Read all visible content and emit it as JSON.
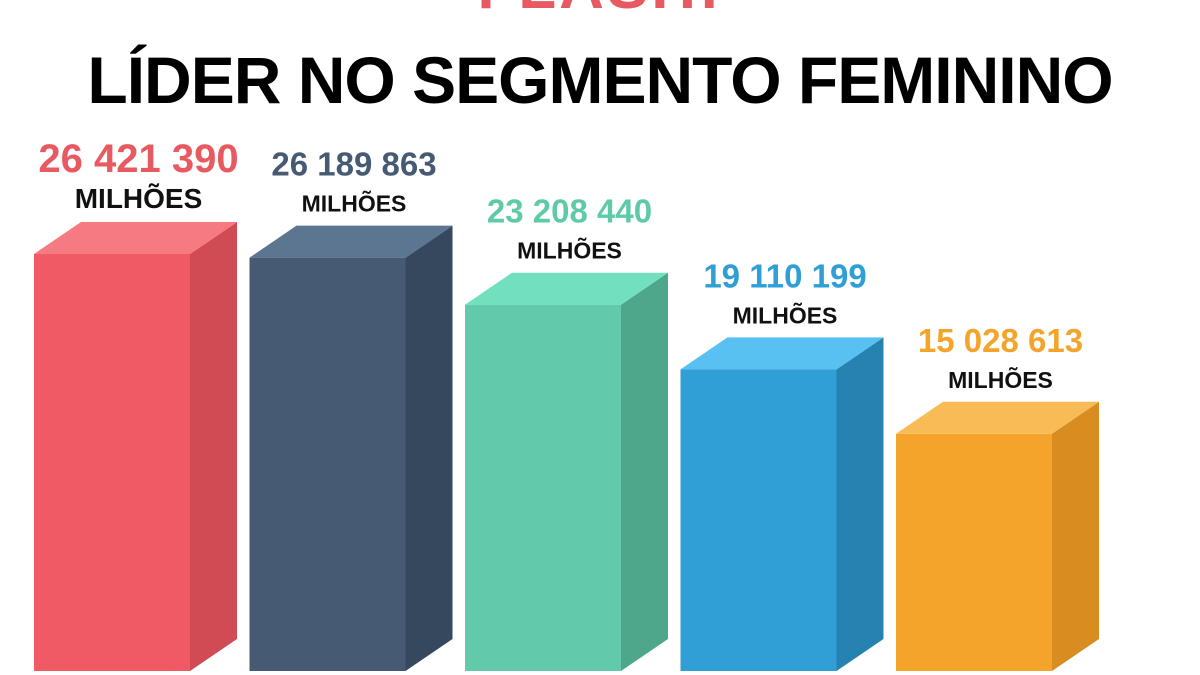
{
  "header": {
    "top_title": "FLASH!",
    "main_title": "LÍDER NO SEGMENTO FEMININO"
  },
  "colors": {
    "top_title": "#e85a62"
  },
  "chart_data": {
    "type": "bar",
    "title": "LÍDER NO SEGMENTO FEMININO",
    "xlabel": "",
    "ylabel": "",
    "ylim": [
      0,
      27500000
    ],
    "grid": false,
    "legend": "none",
    "unit": "MILHÕES",
    "bars": [
      {
        "value": 26421390,
        "label": "26 421 390",
        "front": "#ef5a65",
        "side": "#d14b55",
        "top": "#f57a82",
        "text": "#e85a62"
      },
      {
        "value": 26189863,
        "label": "26 189 863",
        "front": "#465b73",
        "side": "#35485d",
        "top": "#5c7591",
        "text": "#465b73"
      },
      {
        "value": 23208440,
        "label": "23 208 440",
        "front": "#62c9aa",
        "side": "#4ea68b",
        "top": "#72e0bf",
        "text": "#5fcaa8"
      },
      {
        "value": 19110199,
        "label": "19 110 199",
        "front": "#2f9fd6",
        "side": "#2683b1",
        "top": "#58c1f1",
        "text": "#2f9fd6"
      },
      {
        "value": 15028613,
        "label": "15 028 613",
        "front": "#f5a42b",
        "side": "#d98c1f",
        "top": "#f9bb55",
        "text": "#f5a42b"
      }
    ]
  }
}
